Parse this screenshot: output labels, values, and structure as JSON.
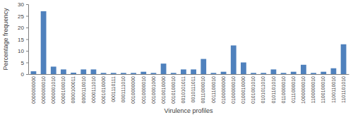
{
  "chart_data": {
    "type": "bar",
    "x_label": "Virulence profiles",
    "y_label": "Percentage frequency",
    "categories": [
      "0000000000",
      "0000000010",
      "0000001010",
      "0000100010",
      "0000100011",
      "0000110010",
      "0000111010",
      "0001010000",
      "0001110111",
      "0001111010",
      "0010000000",
      "0010000010",
      "0010001000",
      "0010010000",
      "0010100010",
      "0010101011",
      "0010111011",
      "0011000010",
      "0011100010",
      "0100000000",
      "0100000010",
      "0100010000",
      "0101001010",
      "0101011010",
      "0101101010",
      "0110000010",
      "0111000010",
      "1000000010",
      "1100000010",
      "1100100010",
      "1100110010",
      "1101101010"
    ],
    "values": [
      1.2,
      27,
      3.2,
      2,
      0.6,
      2,
      2,
      0.5,
      0.5,
      0.5,
      0.5,
      1,
      0.5,
      4.5,
      0.5,
      2,
      2,
      6.5,
      0.5,
      1,
      12.3,
      5,
      0.5,
      0.5,
      2,
      0.5,
      1,
      4,
      0.5,
      1,
      2.5,
      12.8
    ],
    "color": "#4f81bd",
    "ylim": [
      0,
      30
    ],
    "yticks": [
      0,
      5,
      10,
      15,
      20,
      25,
      30
    ],
    "grid": false
  }
}
